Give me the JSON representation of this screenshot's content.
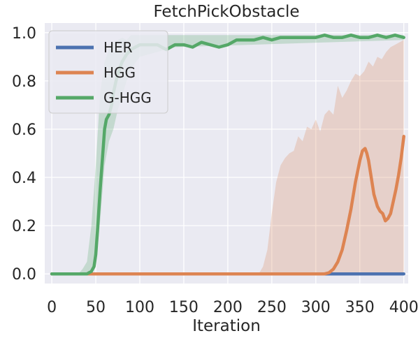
{
  "chart_data": {
    "type": "line",
    "title": "FetchPickObstacle",
    "xlabel": "Iteration",
    "ylabel": "",
    "xlim": [
      -8,
      405
    ],
    "ylim": [
      -0.04,
      1.04
    ],
    "xticks": [
      0,
      50,
      100,
      150,
      200,
      250,
      300,
      350,
      400
    ],
    "yticks": [
      0.0,
      0.2,
      0.4,
      0.6,
      0.8,
      1.0
    ],
    "ytick_labels": [
      "0.0",
      "0.2",
      "0.4",
      "0.6",
      "0.8",
      "1.0"
    ],
    "grid": true,
    "legend_position": "upper-left",
    "colors": {
      "background": "#EAEAF2",
      "grid": "#ffffff"
    },
    "series": [
      {
        "name": "HER",
        "color": "#4C72B0",
        "x": [
          0,
          100,
          200,
          300,
          310,
          320,
          330,
          340,
          350,
          360,
          370,
          380,
          390,
          400
        ],
        "y": [
          0,
          0,
          0,
          0,
          0,
          0,
          0,
          0,
          0,
          0,
          0,
          0,
          0,
          0
        ],
        "band_x": [],
        "band_lower": [],
        "band_upper": []
      },
      {
        "name": "HGG",
        "color": "#DD8452",
        "x": [
          0,
          100,
          200,
          300,
          310,
          315,
          320,
          325,
          330,
          335,
          340,
          345,
          350,
          353,
          356,
          358,
          360,
          363,
          366,
          370,
          373,
          376,
          379,
          382,
          385,
          388,
          391,
          394,
          397,
          400
        ],
        "y": [
          0,
          0,
          0,
          0,
          0.0,
          0.005,
          0.02,
          0.05,
          0.1,
          0.18,
          0.27,
          0.38,
          0.47,
          0.51,
          0.52,
          0.5,
          0.47,
          0.4,
          0.33,
          0.28,
          0.26,
          0.25,
          0.22,
          0.23,
          0.25,
          0.3,
          0.35,
          0.41,
          0.48,
          0.57
        ],
        "band_x": [
          0,
          235,
          240,
          245,
          250,
          255,
          260,
          265,
          270,
          275,
          280,
          285,
          290,
          295,
          300,
          305,
          310,
          315,
          320,
          325,
          330,
          335,
          340,
          345,
          350,
          355,
          360,
          365,
          370,
          375,
          380,
          385,
          390,
          395,
          400
        ],
        "band_lower": [
          0,
          0,
          0,
          0,
          0,
          0,
          0,
          0,
          0,
          0,
          0,
          0,
          0,
          0,
          0,
          0,
          0,
          0,
          0,
          0,
          0,
          0,
          0,
          0,
          0,
          0,
          0,
          0,
          0,
          0,
          0,
          0,
          0,
          0,
          0
        ],
        "band_upper": [
          0,
          0,
          0.03,
          0.1,
          0.25,
          0.38,
          0.45,
          0.48,
          0.5,
          0.51,
          0.57,
          0.55,
          0.61,
          0.6,
          0.64,
          0.59,
          0.66,
          0.68,
          0.66,
          0.78,
          0.73,
          0.76,
          0.8,
          0.83,
          0.82,
          0.84,
          0.88,
          0.86,
          0.9,
          0.89,
          0.92,
          0.94,
          0.95,
          0.96,
          0.97
        ]
      },
      {
        "name": "G-HGG",
        "color": "#55A868",
        "x": [
          0,
          30,
          40,
          45,
          48,
          50,
          52,
          55,
          58,
          60,
          62,
          65,
          68,
          70,
          73,
          76,
          80,
          85,
          90,
          95,
          100,
          110,
          120,
          130,
          140,
          150,
          160,
          170,
          180,
          190,
          200,
          210,
          220,
          230,
          240,
          250,
          260,
          270,
          280,
          290,
          300,
          310,
          320,
          330,
          340,
          350,
          360,
          370,
          380,
          390,
          400
        ],
        "y": [
          0,
          0,
          0,
          0.01,
          0.03,
          0.08,
          0.18,
          0.35,
          0.5,
          0.6,
          0.64,
          0.66,
          0.7,
          0.75,
          0.8,
          0.84,
          0.88,
          0.91,
          0.93,
          0.94,
          0.95,
          0.95,
          0.95,
          0.93,
          0.95,
          0.95,
          0.94,
          0.96,
          0.95,
          0.94,
          0.95,
          0.97,
          0.97,
          0.97,
          0.98,
          0.97,
          0.98,
          0.98,
          0.98,
          0.98,
          0.98,
          0.99,
          0.98,
          0.98,
          0.99,
          0.98,
          0.98,
          0.99,
          0.98,
          0.99,
          0.98
        ],
        "band_x": [
          0,
          30,
          35,
          40,
          45,
          50,
          55,
          60,
          65,
          70,
          75,
          80,
          85,
          90,
          100,
          120,
          140,
          400
        ],
        "band_lower": [
          0,
          0,
          0,
          0,
          0,
          0.03,
          0.22,
          0.45,
          0.55,
          0.6,
          0.68,
          0.74,
          0.8,
          0.85,
          0.9,
          0.92,
          0.94,
          0.97
        ],
        "band_upper": [
          0,
          0,
          0.02,
          0.05,
          0.2,
          0.45,
          0.75,
          0.88,
          0.93,
          0.96,
          0.97,
          0.98,
          0.97,
          0.99,
          0.99,
          0.99,
          0.99,
          0.99
        ]
      }
    ]
  }
}
